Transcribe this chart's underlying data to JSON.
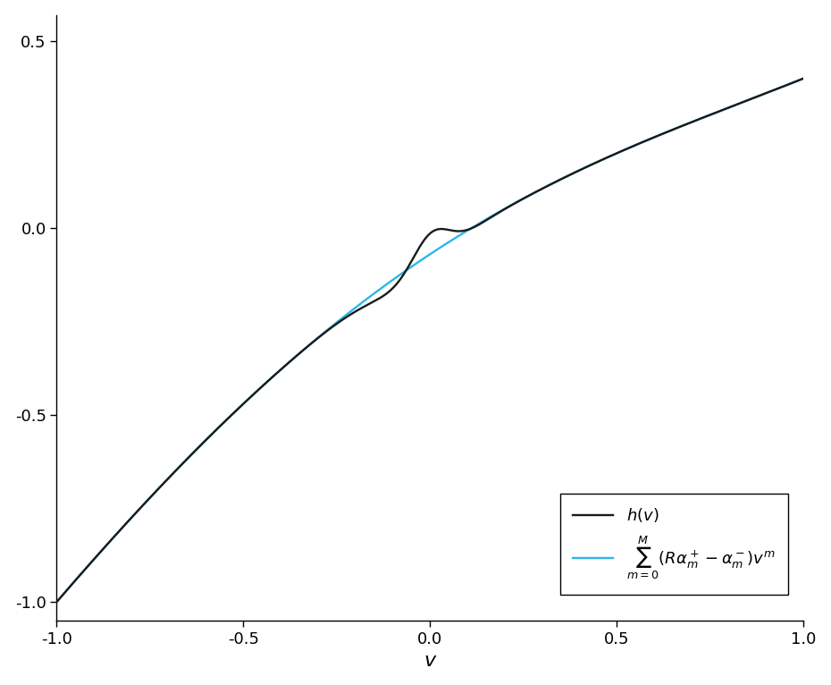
{
  "xlim": [
    -1.0,
    1.0
  ],
  "ylim": [
    -1.05,
    0.57
  ],
  "yticks": [
    -1.0,
    -0.5,
    0.0,
    0.5
  ],
  "xticks": [
    -1.0,
    -0.5,
    0.0,
    0.5,
    1.0
  ],
  "xlabel": "v",
  "black_color": "#1a1a1a",
  "cyan_color": "#29b8e8",
  "linewidth": 1.7,
  "figsize": [
    9.3,
    7.66
  ],
  "dpi": 100,
  "xlabel_fontsize": 16,
  "tick_fontsize": 13,
  "legend_fontsize": 13
}
